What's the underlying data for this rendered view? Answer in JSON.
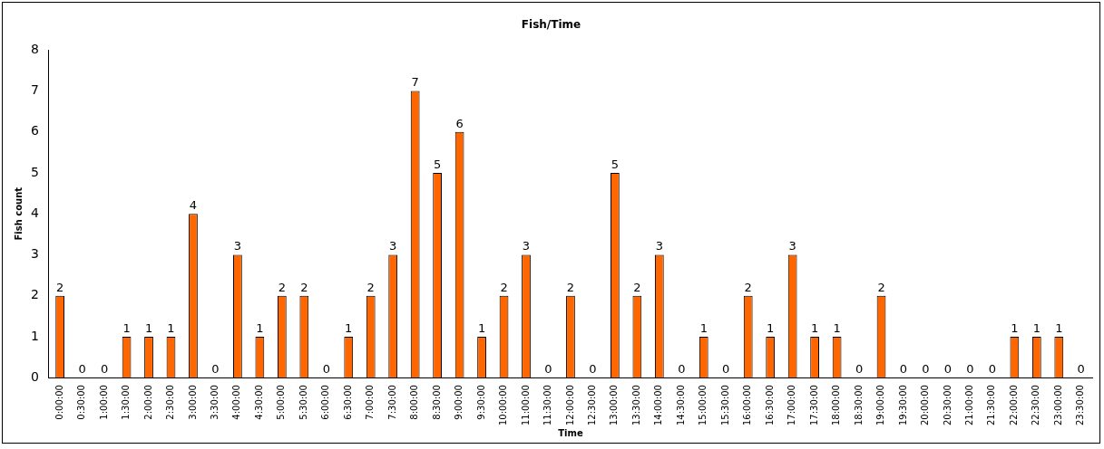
{
  "chart_data": {
    "type": "bar",
    "title": "Fish/Time",
    "xlabel": "Time",
    "ylabel": "Fish count",
    "categories": [
      "0:00:00",
      "0:30:00",
      "1:00:00",
      "1:30:00",
      "2:00:00",
      "2:30:00",
      "3:00:00",
      "3:30:00",
      "4:00:00",
      "4:30:00",
      "5:00:00",
      "5:30:00",
      "6:00:00",
      "6:30:00",
      "7:00:00",
      "7:30:00",
      "8:00:00",
      "8:30:00",
      "9:00:00",
      "9:30:00",
      "10:00:00",
      "11:00:00",
      "11:30:00",
      "12:00:00",
      "12:30:00",
      "13:00:00",
      "13:30:00",
      "14:00:00",
      "14:30:00",
      "15:00:00",
      "15:30:00",
      "16:00:00",
      "16:30:00",
      "17:00:00",
      "17:30:00",
      "18:00:00",
      "18:30:00",
      "19:00:00",
      "19:30:00",
      "20:00:00",
      "20:30:00",
      "21:00:00",
      "21:30:00",
      "22:00:00",
      "22:30:00",
      "23:00:00",
      "23:30:00"
    ],
    "values": [
      2,
      0,
      0,
      1,
      1,
      1,
      4,
      0,
      3,
      1,
      2,
      2,
      0,
      1,
      2,
      3,
      7,
      5,
      6,
      1,
      2,
      3,
      0,
      2,
      0,
      5,
      2,
      3,
      0,
      1,
      0,
      2,
      1,
      3,
      1,
      1,
      0,
      2,
      0,
      0,
      0,
      0,
      0,
      1,
      1,
      1,
      0
    ],
    "color": "#ff6600",
    "ylim": [
      0,
      8
    ],
    "yticks": [
      0,
      1,
      2,
      3,
      4,
      5,
      6,
      7,
      8
    ],
    "grid": false,
    "legend": false,
    "data_labels": true
  }
}
